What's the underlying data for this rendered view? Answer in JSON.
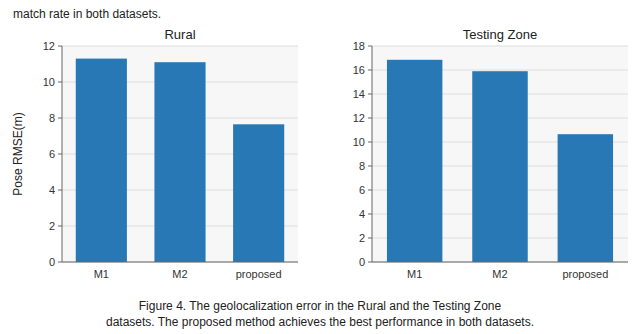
{
  "chart_data": [
    {
      "type": "bar",
      "title": "Rural",
      "categories": [
        "M1",
        "M2",
        "proposed"
      ],
      "values": [
        11.3,
        11.1,
        7.65
      ],
      "color": "#2878b5",
      "ylim": [
        0,
        12
      ],
      "yticks": [
        0,
        2,
        4,
        6,
        8,
        10,
        12
      ],
      "ylabel": "Pose RMSE(m)",
      "grid": true
    },
    {
      "type": "bar",
      "title": "Testing Zone",
      "categories": [
        "M1",
        "M2",
        "proposed"
      ],
      "values": [
        16.85,
        15.9,
        10.65
      ],
      "color": "#2878b5",
      "ylim": [
        0,
        18
      ],
      "yticks": [
        0,
        2,
        4,
        6,
        8,
        10,
        12,
        14,
        16,
        18
      ],
      "grid": true
    }
  ],
  "top_text": "match rate in both datasets.",
  "caption": [
    "Figure 4. The geolocalization error in the Rural and the Testing Zone",
    "datasets. The proposed method achieves the best performance in both datasets."
  ]
}
